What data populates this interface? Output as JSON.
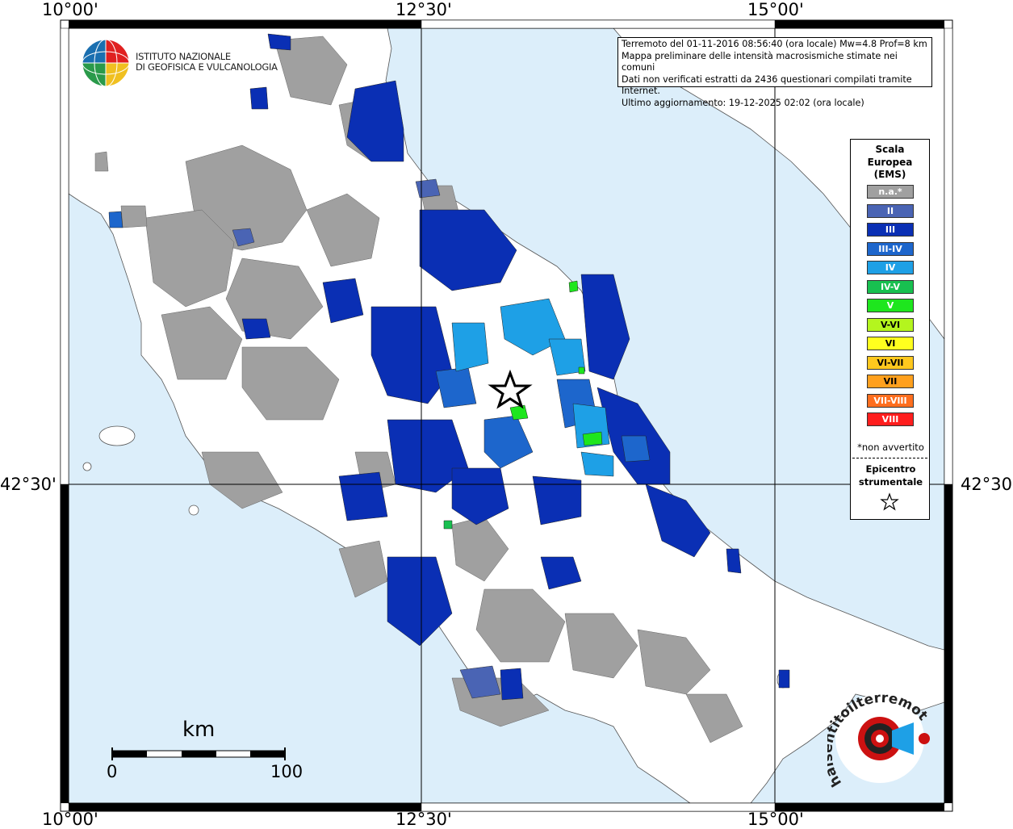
{
  "coords": {
    "lon_west": "10°00'",
    "lon_mid": "12°30'",
    "lon_east": "15°00'",
    "lat_mid": "42°30'"
  },
  "institute": {
    "line1": "ISTITUTO NAZIONALE",
    "line2": "DI GEOFISICA E VULCANOLOGIA"
  },
  "info": {
    "line1": "Terremoto del 01-11-2016 08:56:40 (ora locale) Mw=4.8 Prof=8 km",
    "line2": "Mappa preliminare delle intensità macrosismiche stimate nei comuni",
    "line3": "Dati non verificati estratti da 2436 questionari compilati tramite Internet.",
    "line4": "Ultimo aggiornamento: 19-12-2025 02:02 (ora locale)"
  },
  "legend": {
    "title1": "Scala",
    "title2": "Europea",
    "title3": "(EMS)",
    "items": [
      {
        "label": "n.a.*",
        "color": "#a0a0a0"
      },
      {
        "label": "II",
        "color": "#4a64b4"
      },
      {
        "label": "III",
        "color": "#0a2fb4"
      },
      {
        "label": "III-IV",
        "color": "#1d66cc"
      },
      {
        "label": "IV",
        "color": "#1ea0e6"
      },
      {
        "label": "IV-V",
        "color": "#18c050"
      },
      {
        "label": "V",
        "color": "#1ee61e"
      },
      {
        "label": "V-VI",
        "color": "#b4f51e"
      },
      {
        "label": "VI",
        "color": "#ffff1e"
      },
      {
        "label": "VI-VII",
        "color": "#ffc81e"
      },
      {
        "label": "VII",
        "color": "#ffa01e"
      },
      {
        "label": "VII-VIII",
        "color": "#ff6e1e"
      },
      {
        "label": "VIII",
        "color": "#ff1e1e"
      }
    ],
    "note": "*non avvertito",
    "epicenter1": "Epicentro",
    "epicenter2": "strumentale"
  },
  "scale": {
    "unit": "km",
    "min": "0",
    "max": "100"
  },
  "brand": {
    "text": "haisentitoilterremoto.it",
    "url": "www."
  },
  "colors": {
    "sea": "#dceefa",
    "land": "#ffffff"
  }
}
